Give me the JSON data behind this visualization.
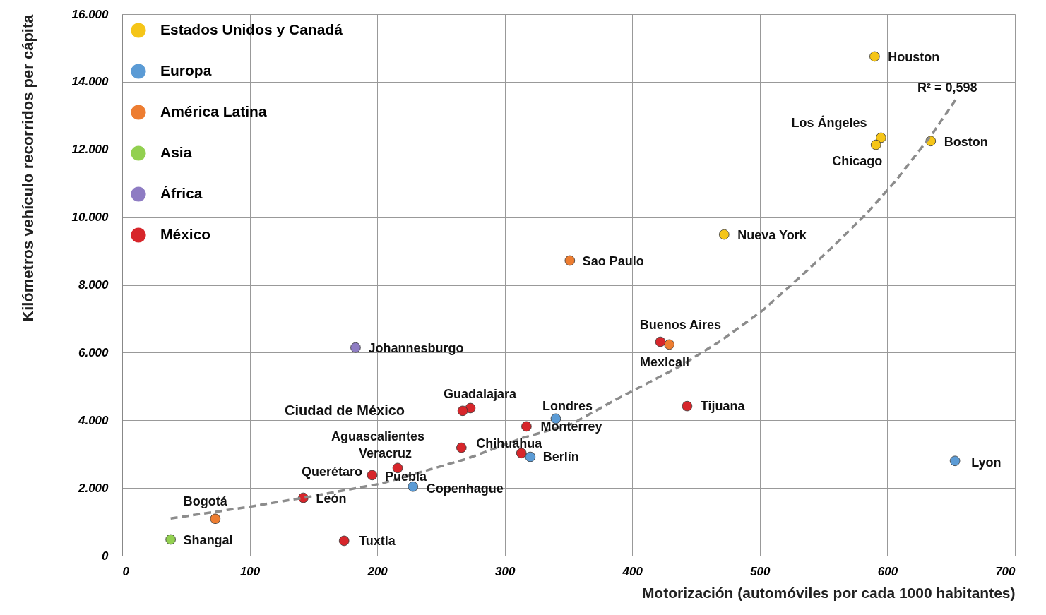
{
  "chart_data": {
    "type": "scatter",
    "xlabel": "Motorización (automóviles por cada 1000 habitantes)",
    "ylabel": "Kilómetros vehículo recorridos per cápita",
    "xlim": [
      0,
      700
    ],
    "xticks": [
      0,
      100,
      200,
      300,
      400,
      500,
      600,
      700
    ],
    "ylim": [
      0,
      16000
    ],
    "yticks": [
      0,
      {
        "value": 2000,
        "label": "2.000"
      },
      {
        "value": 4000,
        "label": "4.000"
      },
      {
        "value": 6000,
        "label": "6.000"
      },
      {
        "value": 8000,
        "label": "8.000"
      },
      {
        "value": 10000,
        "label": "10.000"
      },
      {
        "value": 12000,
        "label": "12.000"
      },
      {
        "value": 14000,
        "label": "14.000"
      },
      {
        "value": 16000,
        "label": "16.000"
      }
    ],
    "grid": true,
    "legend": "top left",
    "marker": "circle",
    "series": [
      {
        "name": "Estados Unidos y Canadá",
        "color": "#f5c518",
        "x": [
          590,
          595,
          591,
          634,
          472
        ],
        "values": [
          14750,
          12350,
          12140,
          12250,
          9490
        ]
      },
      {
        "name": "Europa",
        "color": "#5b9bd5",
        "x": [
          340,
          320,
          228,
          653
        ],
        "values": [
          4050,
          2920,
          2040,
          2800
        ]
      },
      {
        "name": "América Latina",
        "color": "#ed7d31",
        "x": [
          351,
          429,
          73
        ],
        "values": [
          8720,
          6240,
          1090
        ]
      },
      {
        "name": "Asia",
        "color": "#92d050",
        "x": [
          38
        ],
        "values": [
          480
        ]
      },
      {
        "name": "África",
        "color": "#8e7cc3",
        "x": [
          183
        ],
        "values": [
          6150
        ]
      },
      {
        "name": "México",
        "color": "#d7262b",
        "x": [
          422,
          443,
          317,
          313,
          273,
          267,
          266,
          216,
          196,
          142,
          174
        ],
        "values": [
          6320,
          4420,
          3820,
          3030,
          4360,
          4280,
          3190,
          2590,
          2380,
          1710,
          440
        ]
      },
      {
        "type": "line",
        "line_style": "dashed",
        "marker": "none",
        "color": "#8c8c8c",
        "x": [
          38,
          99,
          142,
          203,
          270,
          314,
          353,
          386,
          436,
          469,
          502,
          530,
          557,
          585,
          607,
          635,
          654
        ],
        "values": [
          1100,
          1440,
          1710,
          2130,
          2860,
          3480,
          3900,
          4590,
          5570,
          6340,
          7240,
          8180,
          9120,
          10160,
          11100,
          12450,
          13500
        ]
      }
    ],
    "annotations": [
      {
        "text": "Houston",
        "x": 590,
        "y": 14750
      },
      {
        "text": "R² = 0,598",
        "x": 654,
        "y": 13500
      },
      {
        "text": "Los Ángeles",
        "x": 595,
        "y": 12350
      },
      {
        "text": "Boston",
        "x": 634,
        "y": 12250
      },
      {
        "text": "Chicago",
        "x": 591,
        "y": 12140
      },
      {
        "text": "Nueva York",
        "x": 472,
        "y": 9490
      },
      {
        "text": "Sao Paulo",
        "x": 351,
        "y": 8720
      },
      {
        "text": "Buenos Aires",
        "x": 429,
        "y": 6240
      },
      {
        "text": "Johannesburgo",
        "x": 183,
        "y": 6150
      },
      {
        "text": "Mexicali",
        "x": 422,
        "y": 6320
      },
      {
        "text": "Guadalajara",
        "x": 273,
        "y": 4360
      },
      "Ciudad de México",
      {
        "text": "Londres",
        "x": 340,
        "y": 4050
      },
      {
        "text": "Tijuana",
        "x": 443,
        "y": 4420
      },
      {
        "text": "Monterrey",
        "x": 317,
        "y": 3820
      },
      {
        "text": "Aguascalientes",
        "x": 216,
        "y": 2590
      },
      {
        "text": "Chihuahua",
        "x": 266,
        "y": 3190
      },
      {
        "text": "Veracruz",
        "x": 216,
        "y": 2590
      },
      {
        "text": "Berlín",
        "x": 320,
        "y": 2920
      },
      {
        "text": "Querétaro",
        "x": 196,
        "y": 2380
      },
      {
        "text": "Puebla",
        "x": 196,
        "y": 2380
      },
      {
        "text": "Copenhague",
        "x": 228,
        "y": 2040
      },
      {
        "text": "Bogotá",
        "x": 73,
        "y": 1090
      },
      {
        "text": "León",
        "x": 142,
        "y": 1710
      },
      {
        "text": "Lyon",
        "x": 653,
        "y": 2800
      },
      {
        "text": "Shangai",
        "x": 38,
        "y": 480
      },
      {
        "text": "Tuxtla",
        "x": 174,
        "y": 440
      }
    ]
  }
}
